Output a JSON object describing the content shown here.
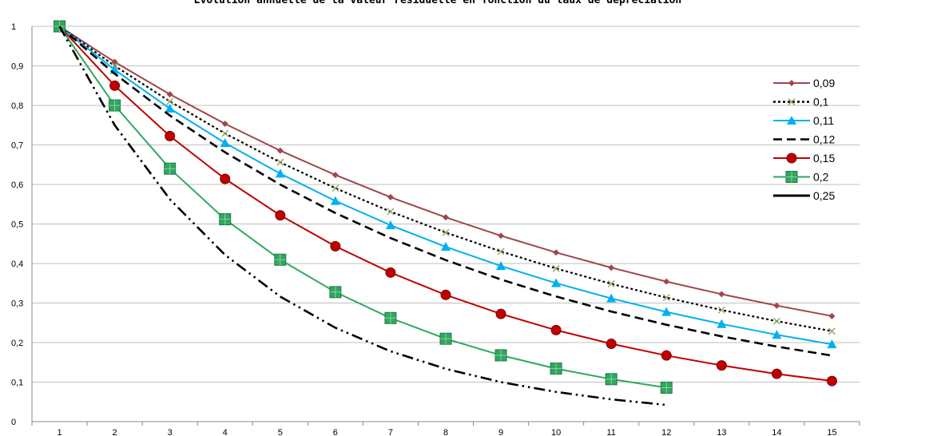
{
  "chart_data": {
    "type": "line",
    "title": "Evolution annuelle de la valeur résiduelle en fonction du taux de dépréciation",
    "xlabel": "",
    "ylabel": "",
    "x": [
      1,
      2,
      3,
      4,
      5,
      6,
      7,
      8,
      9,
      10,
      11,
      12,
      13,
      14,
      15
    ],
    "ylim": [
      0,
      1
    ],
    "yticks": [
      "0",
      "0,1",
      "0,2",
      "0,3",
      "0,4",
      "0,5",
      "0,6",
      "0,7",
      "0,8",
      "0,9",
      "1"
    ],
    "grid": "horizontal",
    "legend_position": "right",
    "series": [
      {
        "name": "0,09",
        "color": "#a0464b",
        "line": "solid",
        "marker": "diamond",
        "values": [
          1,
          0.91,
          0.8281,
          0.7536,
          0.6857,
          0.624,
          0.5679,
          0.5168,
          0.4703,
          0.4279,
          0.3894,
          0.3544,
          0.3225,
          0.2935,
          0.267
        ]
      },
      {
        "name": "0,1",
        "color": "#000000",
        "line": "dotted",
        "marker": "x",
        "values": [
          1,
          0.9,
          0.81,
          0.729,
          0.6561,
          0.5905,
          0.5314,
          0.4783,
          0.4305,
          0.3874,
          0.3487,
          0.3138,
          0.2824,
          0.2542,
          0.2288
        ]
      },
      {
        "name": "0,11",
        "color": "#00b0f0",
        "line": "solid",
        "marker": "triangle",
        "values": [
          1,
          0.89,
          0.7921,
          0.705,
          0.6274,
          0.5584,
          0.497,
          0.4423,
          0.3937,
          0.3504,
          0.3118,
          0.2775,
          0.247,
          0.2198,
          0.1956
        ]
      },
      {
        "name": "0,12",
        "color": "#000000",
        "line": "dashed",
        "marker": "none",
        "values": [
          1,
          0.88,
          0.7744,
          0.6815,
          0.5997,
          0.5277,
          0.4644,
          0.4087,
          0.3596,
          0.3165,
          0.2785,
          0.2451,
          0.2157,
          0.1898,
          0.167
        ]
      },
      {
        "name": "0,15",
        "color": "#c00000",
        "line": "solid",
        "marker": "circle",
        "values": [
          1,
          0.85,
          0.7225,
          0.6141,
          0.522,
          0.4437,
          0.3771,
          0.3206,
          0.2725,
          0.2316,
          0.1969,
          0.1673,
          0.1422,
          0.1209,
          0.1028
        ]
      },
      {
        "name": "0,2",
        "color": "#2fa860",
        "line": "solid",
        "marker": "square",
        "values": [
          1,
          0.8,
          0.64,
          0.512,
          0.4096,
          0.3277,
          0.2621,
          0.2097,
          0.1678,
          0.1342,
          0.1074,
          0.0859,
          null,
          null,
          null
        ]
      },
      {
        "name": "0,25",
        "color": "#000000",
        "line": "dashdotdot",
        "marker": "none",
        "values": [
          1,
          0.75,
          0.5625,
          0.4219,
          0.3164,
          0.2373,
          0.178,
          0.1335,
          0.1001,
          0.0751,
          0.0563,
          0.0422,
          null,
          null,
          null
        ]
      }
    ]
  }
}
